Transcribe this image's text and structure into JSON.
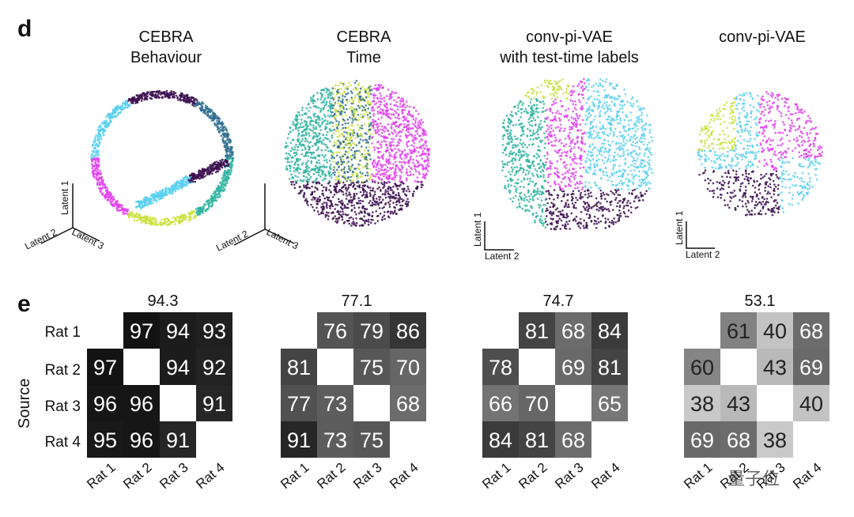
{
  "panel_d": {
    "letter": "d",
    "embeddings": [
      {
        "title_line1": "CEBRA",
        "title_line2": "Behaviour",
        "axes": [
          "Latent 1",
          "Latent 2",
          "Latent 3"
        ]
      },
      {
        "title_line1": "CEBRA",
        "title_line2": "Time",
        "axes": [
          "Latent 2",
          "Latent 3"
        ]
      },
      {
        "title_line1": "conv-pi-VAE",
        "title_line2": "with test-time labels",
        "axes": [
          "Latent 1",
          "Latent 2"
        ]
      },
      {
        "title_line1": "conv-pi-VAE",
        "title_line2": "",
        "axes": [
          "Latent 1",
          "Latent 2"
        ]
      }
    ]
  },
  "panel_e": {
    "letter": "e",
    "y_axis_label": "Source",
    "row_labels": [
      "Rat 1",
      "Rat 2",
      "Rat 3",
      "Rat 4"
    ],
    "col_labels": [
      "Rat 1",
      "Rat 2",
      "Rat 3",
      "Rat 4"
    ]
  },
  "chart_data": [
    {
      "type": "heatmap",
      "title": "94.3",
      "rows": [
        "Rat 1",
        "Rat 2",
        "Rat 3",
        "Rat 4"
      ],
      "columns": [
        "Rat 1",
        "Rat 2",
        "Rat 3",
        "Rat 4"
      ],
      "values": [
        [
          null,
          97,
          94,
          93
        ],
        [
          97,
          null,
          94,
          92
        ],
        [
          96,
          96,
          null,
          91
        ],
        [
          95,
          96,
          91,
          null
        ]
      ],
      "ylabel": "Source"
    },
    {
      "type": "heatmap",
      "title": "77.1",
      "rows": [
        "Rat 1",
        "Rat 2",
        "Rat 3",
        "Rat 4"
      ],
      "columns": [
        "Rat 1",
        "Rat 2",
        "Rat 3",
        "Rat 4"
      ],
      "values": [
        [
          null,
          76,
          79,
          86
        ],
        [
          81,
          null,
          75,
          70
        ],
        [
          77,
          73,
          null,
          68
        ],
        [
          91,
          73,
          75,
          null
        ]
      ]
    },
    {
      "type": "heatmap",
      "title": "74.7",
      "rows": [
        "Rat 1",
        "Rat 2",
        "Rat 3",
        "Rat 4"
      ],
      "columns": [
        "Rat 1",
        "Rat 2",
        "Rat 3",
        "Rat 4"
      ],
      "values": [
        [
          null,
          81,
          68,
          84
        ],
        [
          78,
          null,
          69,
          81
        ],
        [
          66,
          70,
          null,
          65
        ],
        [
          84,
          81,
          68,
          null
        ]
      ]
    },
    {
      "type": "heatmap",
      "title": "53.1",
      "rows": [
        "Rat 1",
        "Rat 2",
        "Rat 3",
        "Rat 4"
      ],
      "columns": [
        "Rat 1",
        "Rat 2",
        "Rat 3",
        "Rat 4"
      ],
      "values": [
        [
          null,
          61,
          40,
          68
        ],
        [
          60,
          null,
          43,
          69
        ],
        [
          38,
          43,
          null,
          40
        ],
        [
          69,
          68,
          38,
          null
        ]
      ]
    }
  ],
  "watermark": "量子位",
  "colors": {
    "palette": [
      "#3b0f4f",
      "#2f6f8f",
      "#2fb3a0",
      "#c8e03a",
      "#e040f0",
      "#5ad0f0"
    ]
  }
}
